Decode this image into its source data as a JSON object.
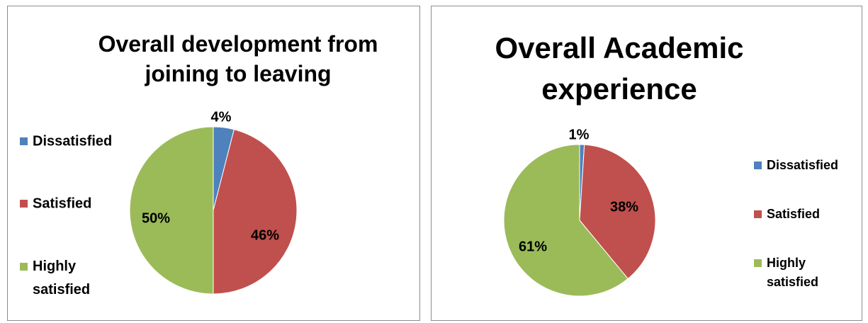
{
  "chart_data": [
    {
      "type": "pie",
      "title": "Overall development from joining to leaving",
      "categories": [
        "Dissatisfied",
        "Satisfied",
        "Highly satisfied"
      ],
      "values": [
        4,
        46,
        50
      ],
      "data_labels": [
        "4%",
        "46%",
        "50%"
      ],
      "colors": [
        "#4f81bd",
        "#c0504d",
        "#9bbb59"
      ],
      "legend_position": "left"
    },
    {
      "type": "pie",
      "title": "Overall Academic experience",
      "categories": [
        "Dissatisfied",
        "Satisfied",
        "Highly satisfied"
      ],
      "values": [
        1,
        38,
        61
      ],
      "data_labels": [
        "1%",
        "38%",
        "61%"
      ],
      "colors": [
        "#4f81bd",
        "#c0504d",
        "#9bbb59"
      ],
      "legend_position": "right"
    }
  ]
}
